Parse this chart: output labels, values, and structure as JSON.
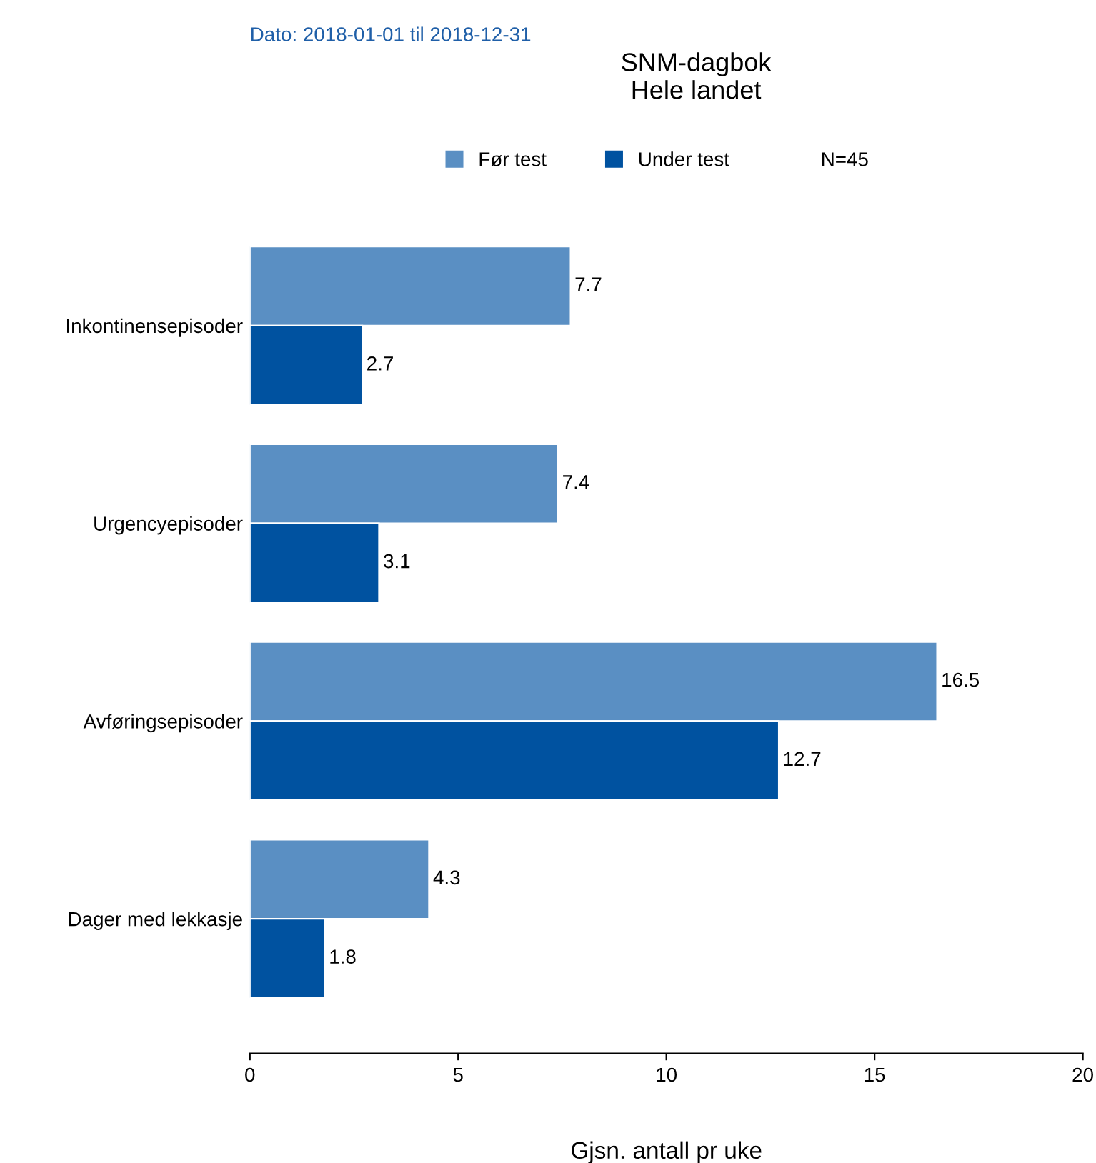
{
  "chart_data": {
    "type": "bar",
    "orientation": "horizontal",
    "title": "SNM-dagbok\nHele landet",
    "subtitle": "Dato: 2018-01-01 til 2018-12-31",
    "xlabel": "Gjsn. antall pr uke",
    "categories": [
      "Inkontinensepisoder",
      "Urgencyepisoder",
      "Avføringsepisoder",
      "Dager med lekkasje"
    ],
    "series": [
      {
        "name": "Før test",
        "color": "#5a8fc3",
        "values": [
          7.7,
          7.4,
          16.5,
          4.3
        ]
      },
      {
        "name": "Under test",
        "color": "#0052a0",
        "values": [
          2.7,
          3.1,
          12.7,
          1.8
        ]
      }
    ],
    "annotations": [
      "N=45"
    ],
    "xlim": [
      0,
      20
    ],
    "xticks": [
      0,
      5,
      10,
      15,
      20
    ],
    "grid": false,
    "legend": "top",
    "data_labels": true
  }
}
